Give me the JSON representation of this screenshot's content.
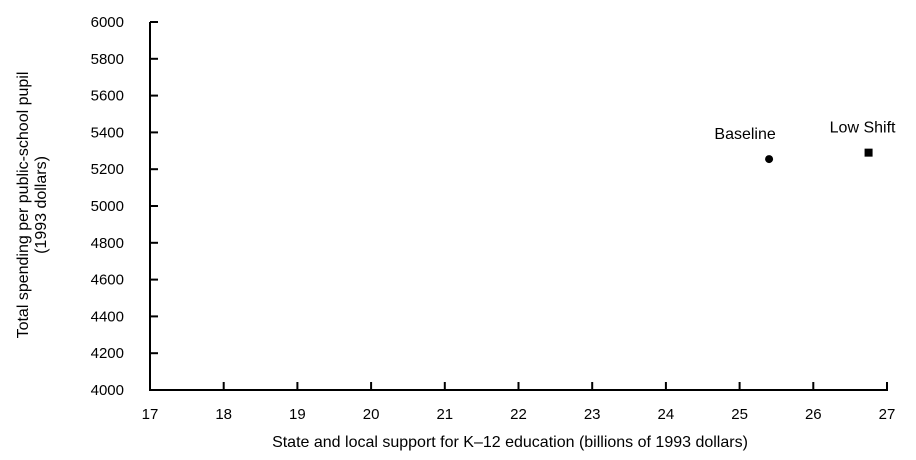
{
  "chart_data": {
    "type": "scatter",
    "title": "",
    "xlabel": "State and local support for K–12 education (billions of 1993 dollars)",
    "ylabel_line1": "Total spending per public-school pupil",
    "ylabel_line2": "(1993 dollars)",
    "xlim": [
      17,
      27
    ],
    "ylim": [
      4000,
      6000
    ],
    "x_ticks": [
      "17",
      "18",
      "19",
      "20",
      "21",
      "22",
      "23",
      "24",
      "25",
      "26",
      "27"
    ],
    "y_ticks": [
      "4000",
      "4200",
      "4400",
      "4600",
      "4800",
      "5000",
      "5200",
      "5400",
      "5600",
      "5800",
      "6000"
    ],
    "grid": false,
    "points": [
      {
        "label": "Baseline",
        "x": 25.4,
        "y": 5255,
        "marker": "circle"
      },
      {
        "label": "Low Shift",
        "x": 26.75,
        "y": 5290,
        "marker": "square"
      }
    ]
  }
}
